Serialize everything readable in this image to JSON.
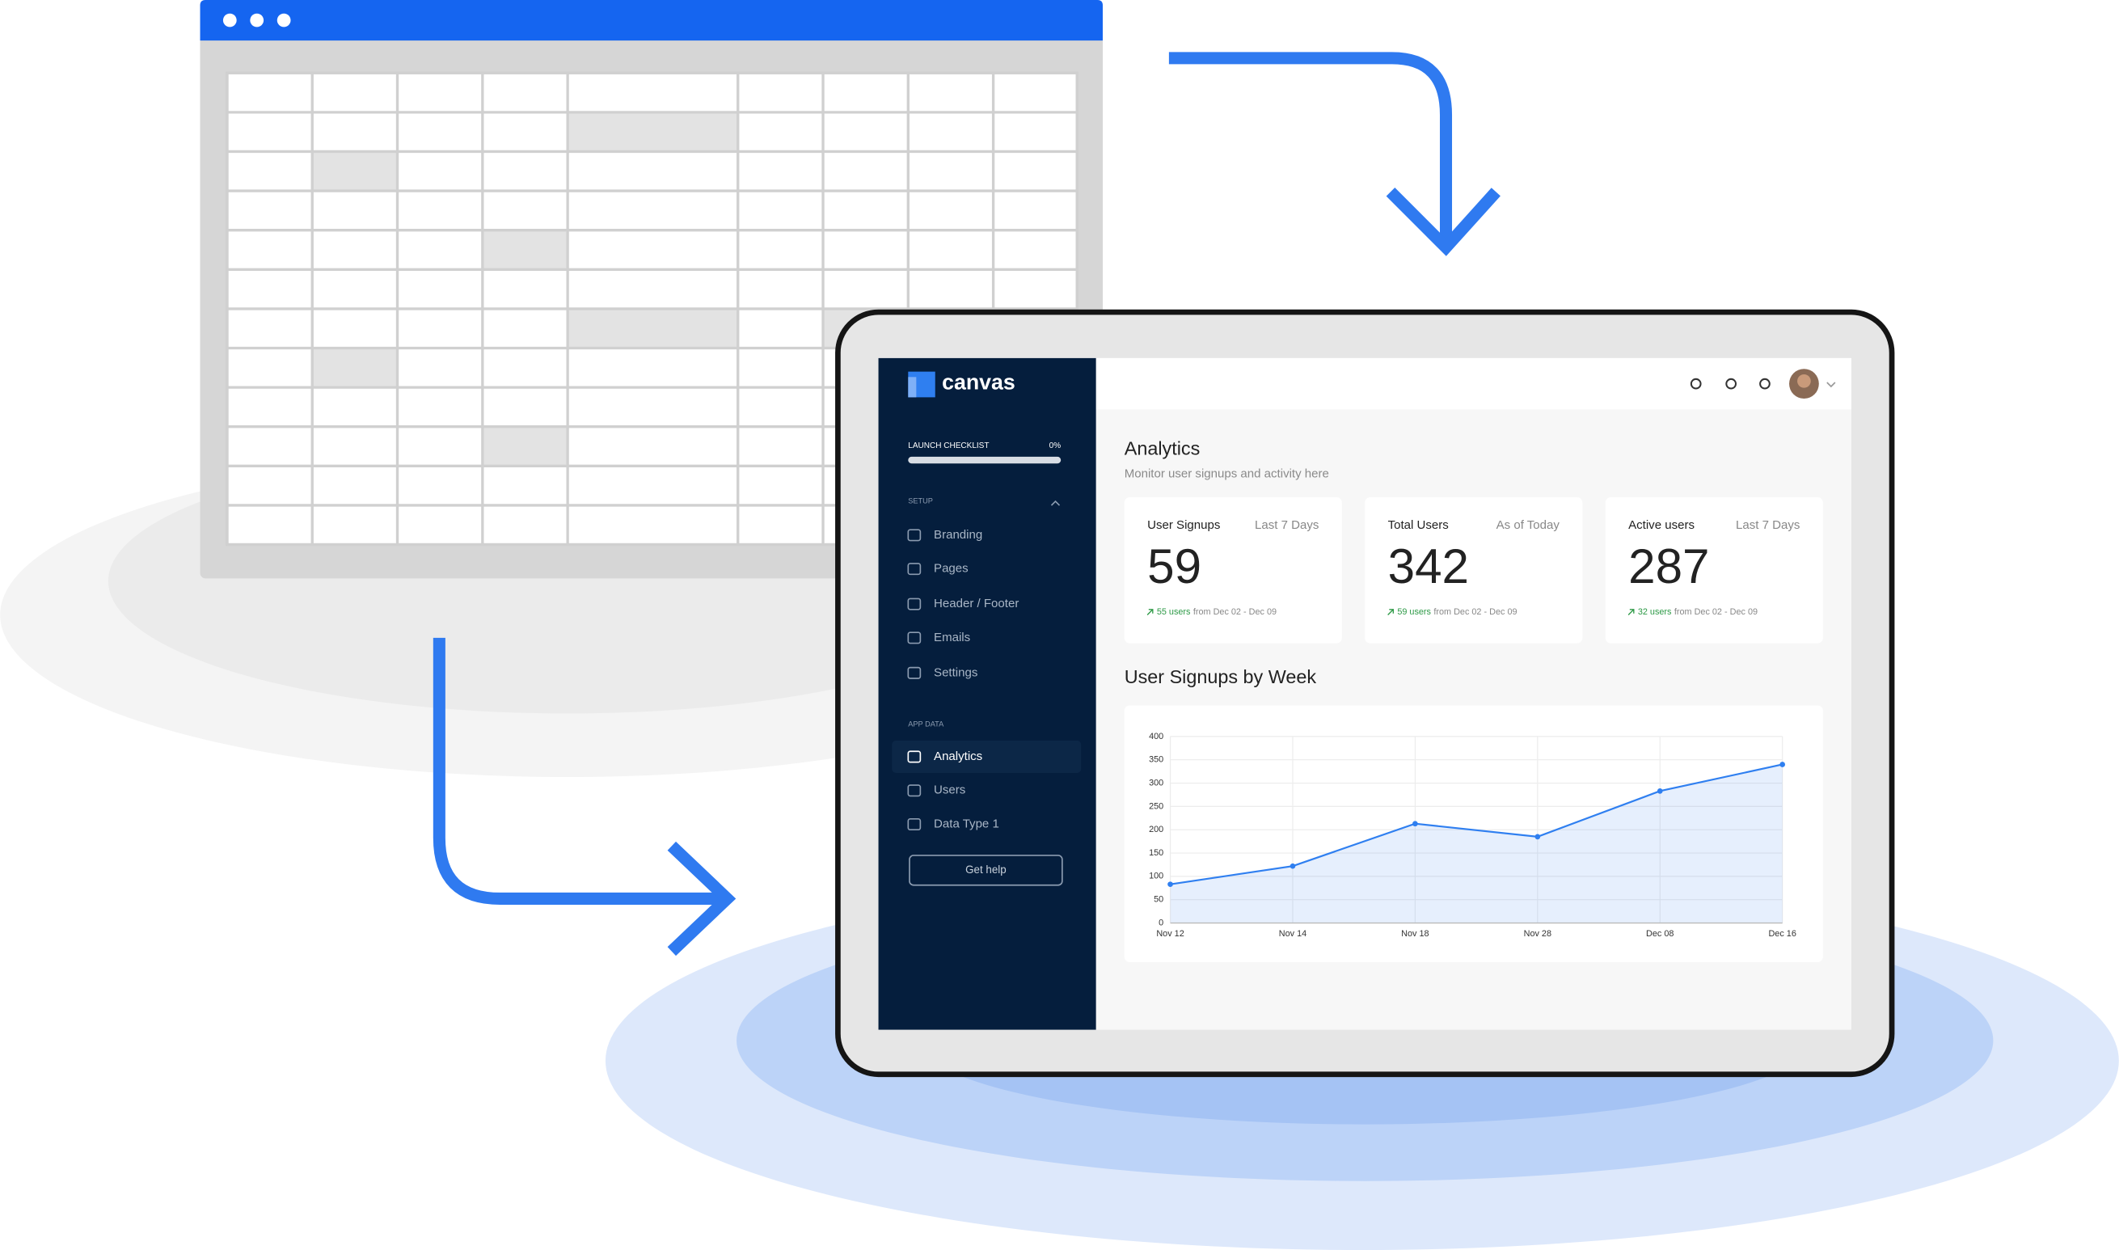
{
  "sidebar": {
    "logo": "canvas",
    "checklist": {
      "label": "LAUNCH CHECKLIST",
      "progress": "0%"
    },
    "sections": [
      {
        "title": "SETUP",
        "items": [
          "Branding",
          "Pages",
          "Header / Footer",
          "Emails",
          "Settings"
        ]
      },
      {
        "title": "APP DATA",
        "items": [
          "Analytics",
          "Users",
          "Data Type 1"
        ]
      }
    ],
    "help": "Get help"
  },
  "header": {
    "title": "Analytics",
    "subtitle": "Monitor user signups and activity here"
  },
  "cards": [
    {
      "title": "User Signups",
      "period": "Last 7 Days",
      "value": 59,
      "change": "55 users",
      "note": "from Dec 02 - Dec 09"
    },
    {
      "title": "Total Users",
      "period": "As of Today",
      "value": 342,
      "change": "59 users",
      "note": "from Dec 02 - Dec 09"
    },
    {
      "title": "Active users",
      "period": "Last 7 Days",
      "value": 287,
      "change": "32 users",
      "note": "from Dec 02 - Dec 09"
    }
  ],
  "chart_data": {
    "type": "line",
    "title": "User Signups by Week",
    "categories": [
      "Nov 12",
      "Nov 14",
      "Nov 18",
      "Nov 28",
      "Dec 08",
      "Dec 16"
    ],
    "values": [
      83,
      122,
      213,
      185,
      283,
      340
    ],
    "color": "#2f7ff0",
    "ylim": [
      0,
      400
    ],
    "yticks": [
      0,
      50,
      100,
      150,
      200,
      250,
      300,
      350,
      400
    ],
    "grid": true
  }
}
